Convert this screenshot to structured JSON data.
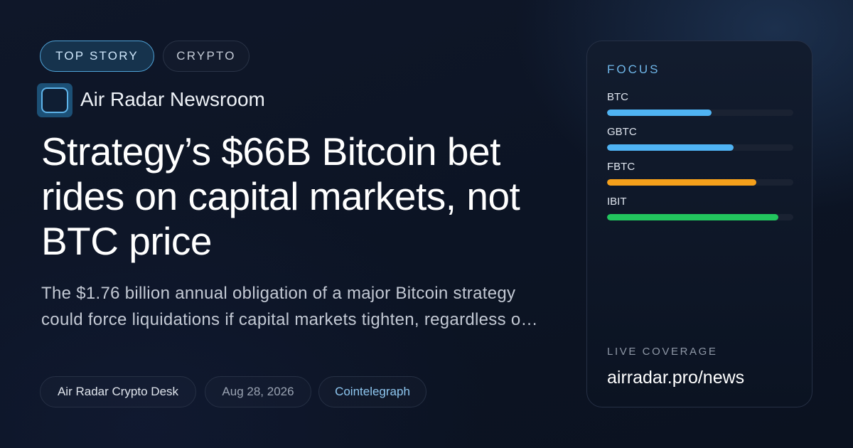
{
  "tags": {
    "top_story": "TOP STORY",
    "category": "CRYPTO"
  },
  "source": {
    "name": "Air Radar Newsroom",
    "logo_icon": "rounded-square-logo-icon"
  },
  "headline": "Strategy’s $66B Bitcoin bet rides on capital markets, not BTC price",
  "summary": "The $1.76 billion annual obligation of a major Bitcoin strategy could force liquidations if capital markets tighten, regardless o…",
  "meta": {
    "desk": "Air Radar Crypto Desk",
    "date": "Aug 28, 2026",
    "publisher": "Cointelegraph"
  },
  "focus": {
    "title": "FOCUS",
    "items": [
      {
        "label": "BTC",
        "level": 0.56,
        "color": "#4fb3f3"
      },
      {
        "label": "GBTC",
        "level": 0.68,
        "color": "#4fb3f3"
      },
      {
        "label": "FBTC",
        "level": 0.8,
        "color": "#f5a01b"
      },
      {
        "label": "IBIT",
        "level": 0.92,
        "color": "#22c55e"
      }
    ]
  },
  "coverage": {
    "label": "LIVE COVERAGE",
    "url": "airradar.pro/news"
  },
  "colors": {
    "accent": "#4fa3d8",
    "background": "#0f1729"
  }
}
